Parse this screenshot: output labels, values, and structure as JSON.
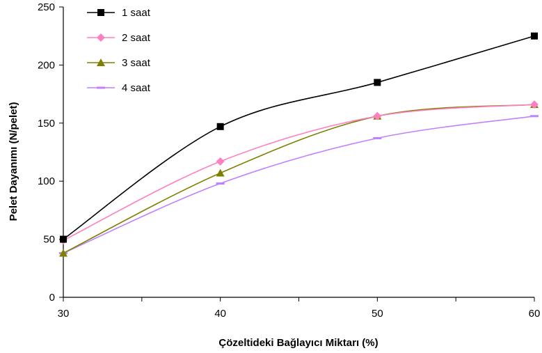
{
  "chart_data": {
    "type": "line",
    "title": "",
    "xlabel": "Çözeltideki Bağlayıcı Miktarı (%)",
    "ylabel": "Pelet Dayanımı (N/pelet)",
    "x": [
      30,
      40,
      50,
      60
    ],
    "xticks": [
      "30",
      "40",
      "50",
      "60"
    ],
    "yticks": [
      "0",
      "50",
      "100",
      "150",
      "200",
      "250"
    ],
    "xlim": [
      30,
      60
    ],
    "ylim": [
      0,
      250
    ],
    "grid": false,
    "legend_position": "top-left",
    "series": [
      {
        "name": "1 saat",
        "values": [
          50,
          147,
          185,
          225
        ],
        "color": "#000000",
        "marker": "square"
      },
      {
        "name": "2 saat",
        "values": [
          49,
          117,
          156,
          166
        ],
        "color": "#ff80c0",
        "marker": "diamond"
      },
      {
        "name": "3 saat",
        "values": [
          38,
          107,
          156,
          166
        ],
        "color": "#808000",
        "marker": "triangle"
      },
      {
        "name": "4 saat",
        "values": [
          38,
          98,
          137,
          156
        ],
        "color": "#c080ff",
        "marker": "dash"
      }
    ]
  }
}
